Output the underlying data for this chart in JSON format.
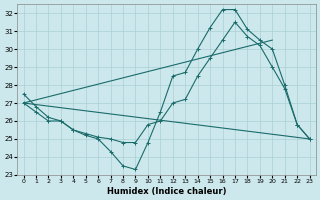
{
  "bg_color": "#cce8ec",
  "grid_color": "#aad0d4",
  "line_color": "#1a6b6b",
  "xlim": [
    -0.5,
    23.5
  ],
  "ylim": [
    23,
    32.5
  ],
  "xlabel": "Humidex (Indice chaleur)",
  "yticks": [
    23,
    24,
    25,
    26,
    27,
    28,
    29,
    30,
    31,
    32
  ],
  "xticks": [
    0,
    1,
    2,
    3,
    4,
    5,
    6,
    7,
    8,
    9,
    10,
    11,
    12,
    13,
    14,
    15,
    16,
    17,
    18,
    19,
    20,
    21,
    22,
    23
  ],
  "series": [
    {
      "x": [
        0,
        1,
        2,
        3,
        4,
        5,
        6,
        7,
        8,
        9,
        10,
        11,
        12,
        13,
        14,
        15,
        16,
        17,
        18,
        19,
        20,
        21,
        22,
        23
      ],
      "y": [
        27.5,
        26.8,
        26.2,
        26.0,
        25.5,
        25.2,
        25.0,
        24.3,
        23.5,
        23.3,
        24.8,
        26.5,
        28.5,
        28.7,
        30.0,
        31.2,
        32.2,
        32.2,
        31.1,
        30.5,
        30.0,
        28.0,
        25.8,
        25.0
      ]
    },
    {
      "x": [
        0,
        1,
        2,
        3,
        4,
        5,
        6,
        7,
        8,
        9,
        10,
        11,
        12,
        13,
        14,
        15,
        16,
        17,
        18,
        19,
        20,
        21,
        22,
        23
      ],
      "y": [
        27.0,
        26.5,
        26.0,
        26.0,
        25.5,
        25.3,
        25.1,
        25.0,
        24.8,
        24.8,
        25.8,
        26.0,
        27.0,
        27.2,
        28.5,
        29.5,
        30.5,
        31.5,
        30.7,
        30.2,
        29.0,
        27.8,
        25.8,
        25.0
      ]
    },
    {
      "x": [
        0,
        20
      ],
      "y": [
        27.0,
        30.5
      ]
    },
    {
      "x": [
        0,
        23
      ],
      "y": [
        27.0,
        25.0
      ]
    }
  ]
}
